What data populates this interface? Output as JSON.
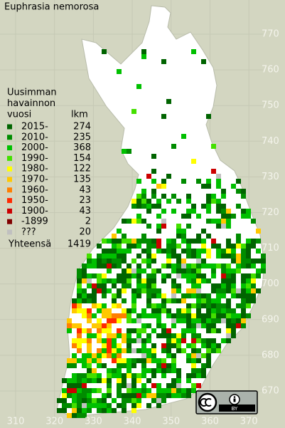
{
  "title": "Euphrasia nemorosa",
  "legend": {
    "heading": [
      "Uusimman",
      "havainnon",
      "vuosi"
    ],
    "count_heading": "lkm",
    "entries": [
      {
        "label": "2015-",
        "count": 274,
        "color": "#006400"
      },
      {
        "label": "2010-",
        "count": 235,
        "color": "#008c00"
      },
      {
        "label": "2000-",
        "count": 368,
        "color": "#00c000"
      },
      {
        "label": "1990-",
        "count": 154,
        "color": "#44e000"
      },
      {
        "label": "1980-",
        "count": 122,
        "color": "#ffff00"
      },
      {
        "label": "1970-",
        "count": 135,
        "color": "#ffc800"
      },
      {
        "label": "1960-",
        "count": 43,
        "color": "#ff7f00"
      },
      {
        "label": "1950-",
        "count": 23,
        "color": "#ff2a00"
      },
      {
        "label": "1900-",
        "count": 43,
        "color": "#cc0000"
      },
      {
        "label": "-1899",
        "count": 2,
        "color": "#800000"
      },
      {
        "label": "???",
        "count": 20,
        "color": "#c0c0c0"
      }
    ],
    "total": {
      "label": "Yhteensä",
      "value": 1419
    }
  },
  "x_axis_labels": [
    310,
    320,
    330,
    340,
    350,
    360,
    370
  ],
  "y_axis_labels": [
    770,
    760,
    750,
    740,
    730,
    720,
    710,
    700,
    690,
    680,
    670
  ],
  "license": {
    "badge_text": "BY"
  }
}
